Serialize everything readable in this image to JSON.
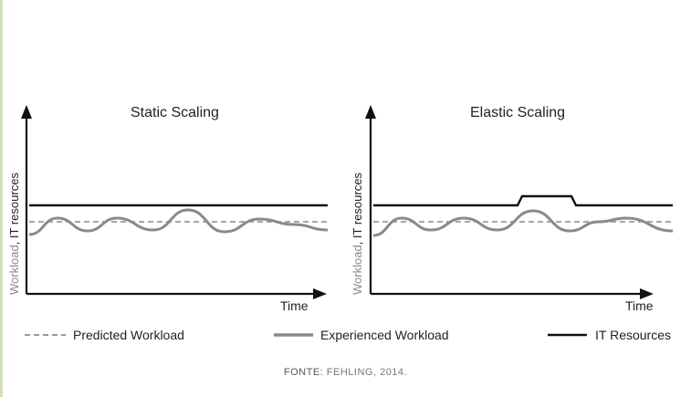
{
  "panels": [
    {
      "title": "Static Scaling",
      "ylabel_workload": "Workload",
      "ylabel_sep": ", ",
      "ylabel_resources": "IT resources",
      "xlabel": "Time"
    },
    {
      "title": "Elastic Scaling",
      "ylabel_workload": "Workload",
      "ylabel_sep": ", ",
      "ylabel_resources": "IT resources",
      "xlabel": "Time"
    }
  ],
  "legend": [
    {
      "label": "Predicted Workload",
      "style": "dashed",
      "color": "#8a8a8a"
    },
    {
      "label": "Experienced Workload",
      "style": "solid-thick",
      "color": "#8a8a8a"
    },
    {
      "label": "IT Resources",
      "style": "solid",
      "color": "#111111"
    }
  ],
  "source": {
    "key": "FONTE:",
    "text": " FEHLING, 2014."
  }
}
